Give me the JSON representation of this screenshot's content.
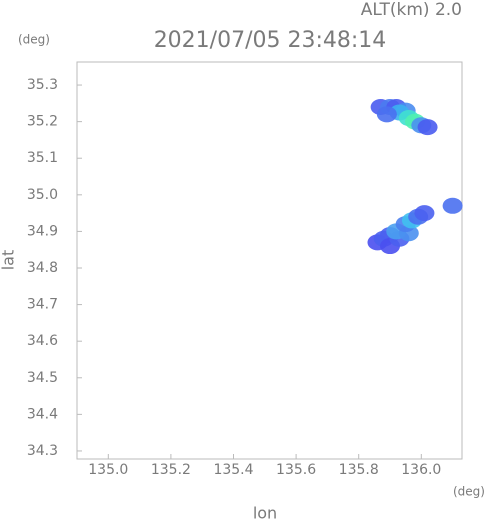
{
  "chart_data": {
    "type": "scatter",
    "title": "2021/07/05 23:48:14",
    "annotation": "ALT(km) 2.0",
    "y_unit": "(deg)",
    "x_unit": "(deg)",
    "xlabel": "lon",
    "ylabel": "lat",
    "xlim": [
      134.9,
      136.13
    ],
    "ylim": [
      34.278,
      35.363
    ],
    "xticks": [
      {
        "value": 135.0,
        "label": "135.0"
      },
      {
        "value": 135.2,
        "label": "135.2"
      },
      {
        "value": 135.4,
        "label": "135.4"
      },
      {
        "value": 135.6,
        "label": "135.6"
      },
      {
        "value": 135.8,
        "label": "135.8"
      },
      {
        "value": 136.0,
        "label": "136.0"
      }
    ],
    "yticks": [
      {
        "value": 34.3,
        "label": "34.3"
      },
      {
        "value": 34.4,
        "label": "34.4"
      },
      {
        "value": 34.5,
        "label": "34.5"
      },
      {
        "value": 34.6,
        "label": "34.6"
      },
      {
        "value": 34.7,
        "label": "34.7"
      },
      {
        "value": 34.8,
        "label": "34.8"
      },
      {
        "value": 34.9,
        "label": "34.9"
      },
      {
        "value": 35.0,
        "label": "35.0"
      },
      {
        "value": 35.1,
        "label": "35.1"
      },
      {
        "value": 35.2,
        "label": "35.2"
      },
      {
        "value": 35.3,
        "label": "35.3"
      }
    ],
    "x": [
      135.87,
      135.9,
      135.92,
      135.95,
      135.93,
      135.89,
      135.96,
      135.98,
      136.0,
      136.02,
      135.86,
      135.88,
      135.9,
      135.9,
      135.93,
      135.92,
      135.96,
      135.95,
      135.97,
      135.99,
      136.01,
      136.1
    ],
    "values": [
      35.24,
      35.24,
      35.24,
      35.23,
      35.225,
      35.22,
      35.21,
      35.2,
      35.19,
      35.185,
      34.87,
      34.88,
      34.89,
      34.86,
      34.88,
      34.9,
      34.895,
      34.92,
      34.93,
      34.94,
      34.95,
      34.97
    ],
    "colors": [
      "#4a5cf0",
      "#4a7cf0",
      "#4a5cf0",
      "#4a8cf0",
      "#3cb0f0",
      "#4a70f0",
      "#40e0d0",
      "#50f0b0",
      "#4a90f0",
      "#4a5cf0",
      "#4a50f0",
      "#4a60f0",
      "#4a60f0",
      "#4a50f0",
      "#4a60f0",
      "#4aa0f0",
      "#4a90f0",
      "#4a80f0",
      "#40c0f0",
      "#4a70f0",
      "#4a60f0",
      "#4a70f0"
    ]
  }
}
